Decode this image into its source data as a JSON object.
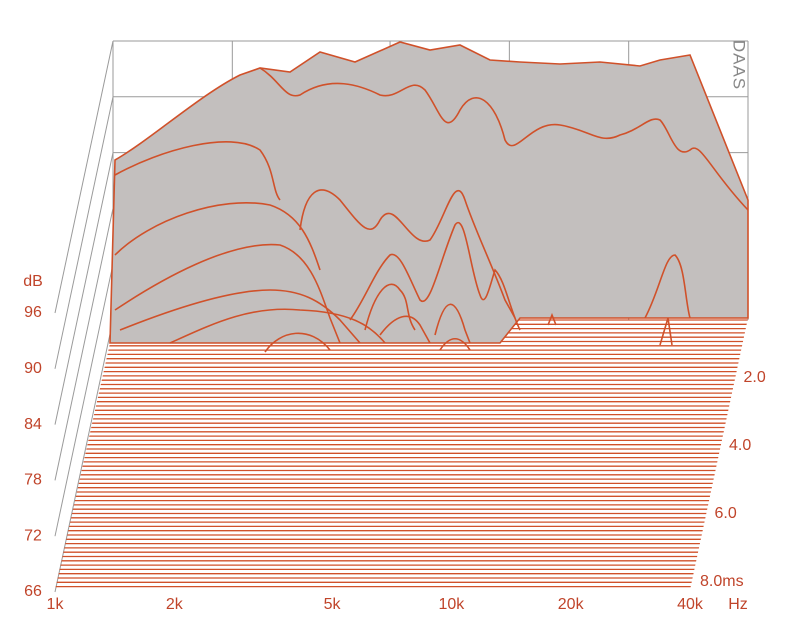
{
  "chart_data": {
    "type": "waterfall",
    "watermark": "DAAS",
    "y_label": "dB",
    "x_unit": "Hz",
    "xscale": "log",
    "xlim": [
      1000,
      40000
    ],
    "xticks": [
      {
        "value": 1000,
        "label": "1k"
      },
      {
        "value": 2000,
        "label": "2k"
      },
      {
        "value": 5000,
        "label": "5k"
      },
      {
        "value": 10000,
        "label": "10k"
      },
      {
        "value": 20000,
        "label": "20k"
      },
      {
        "value": 40000,
        "label": "40k"
      }
    ],
    "ylim": [
      66,
      96
    ],
    "yticks": [
      96,
      90,
      84,
      78,
      72,
      66
    ],
    "zlim": [
      0,
      8
    ],
    "zticks": [
      {
        "value": 2,
        "label": "2.0"
      },
      {
        "value": 4,
        "label": "4.0"
      },
      {
        "value": 6,
        "label": "6.0"
      },
      {
        "value": 8,
        "label": "8.0ms"
      }
    ],
    "color": "#d0512a",
    "surface_color": "#c3bfbe",
    "grid": true
  }
}
